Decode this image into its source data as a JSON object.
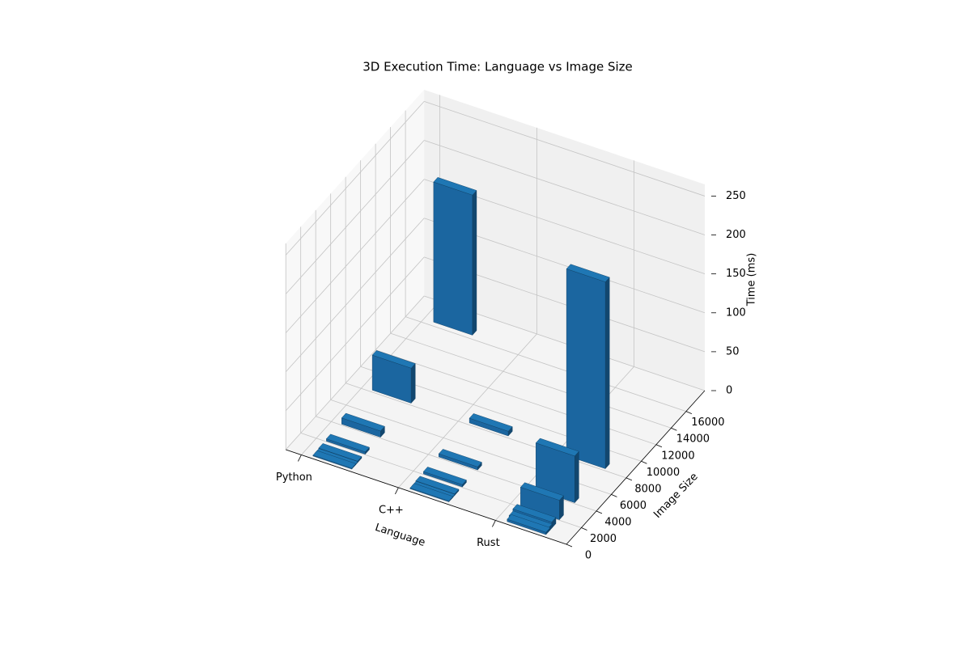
{
  "chart_data": {
    "type": "bar3d",
    "title": "3D Execution Time: Language vs Image Size",
    "xlabel": "Language",
    "ylabel": "Image Size",
    "zlabel": "Time (ms)",
    "categories": [
      "Python",
      "C++",
      "Rust"
    ],
    "y": [
      256,
      512,
      1024,
      2048,
      4096,
      8192,
      16384
    ],
    "values": [
      [
        1,
        1,
        2,
        3,
        8,
        45,
        180
      ],
      [
        1,
        1,
        2,
        3,
        4,
        6,
        null
      ],
      [
        3,
        5,
        8,
        25,
        60,
        240,
        null
      ]
    ],
    "color": "#1f77b4",
    "ylim": [
      0,
      18500
    ],
    "yticks": [
      0,
      2000,
      4000,
      6000,
      8000,
      10000,
      12000,
      14000,
      16000
    ],
    "zlim": [
      0,
      265
    ],
    "zticks": [
      0,
      50,
      100,
      150,
      200,
      250
    ],
    "grid": true
  }
}
